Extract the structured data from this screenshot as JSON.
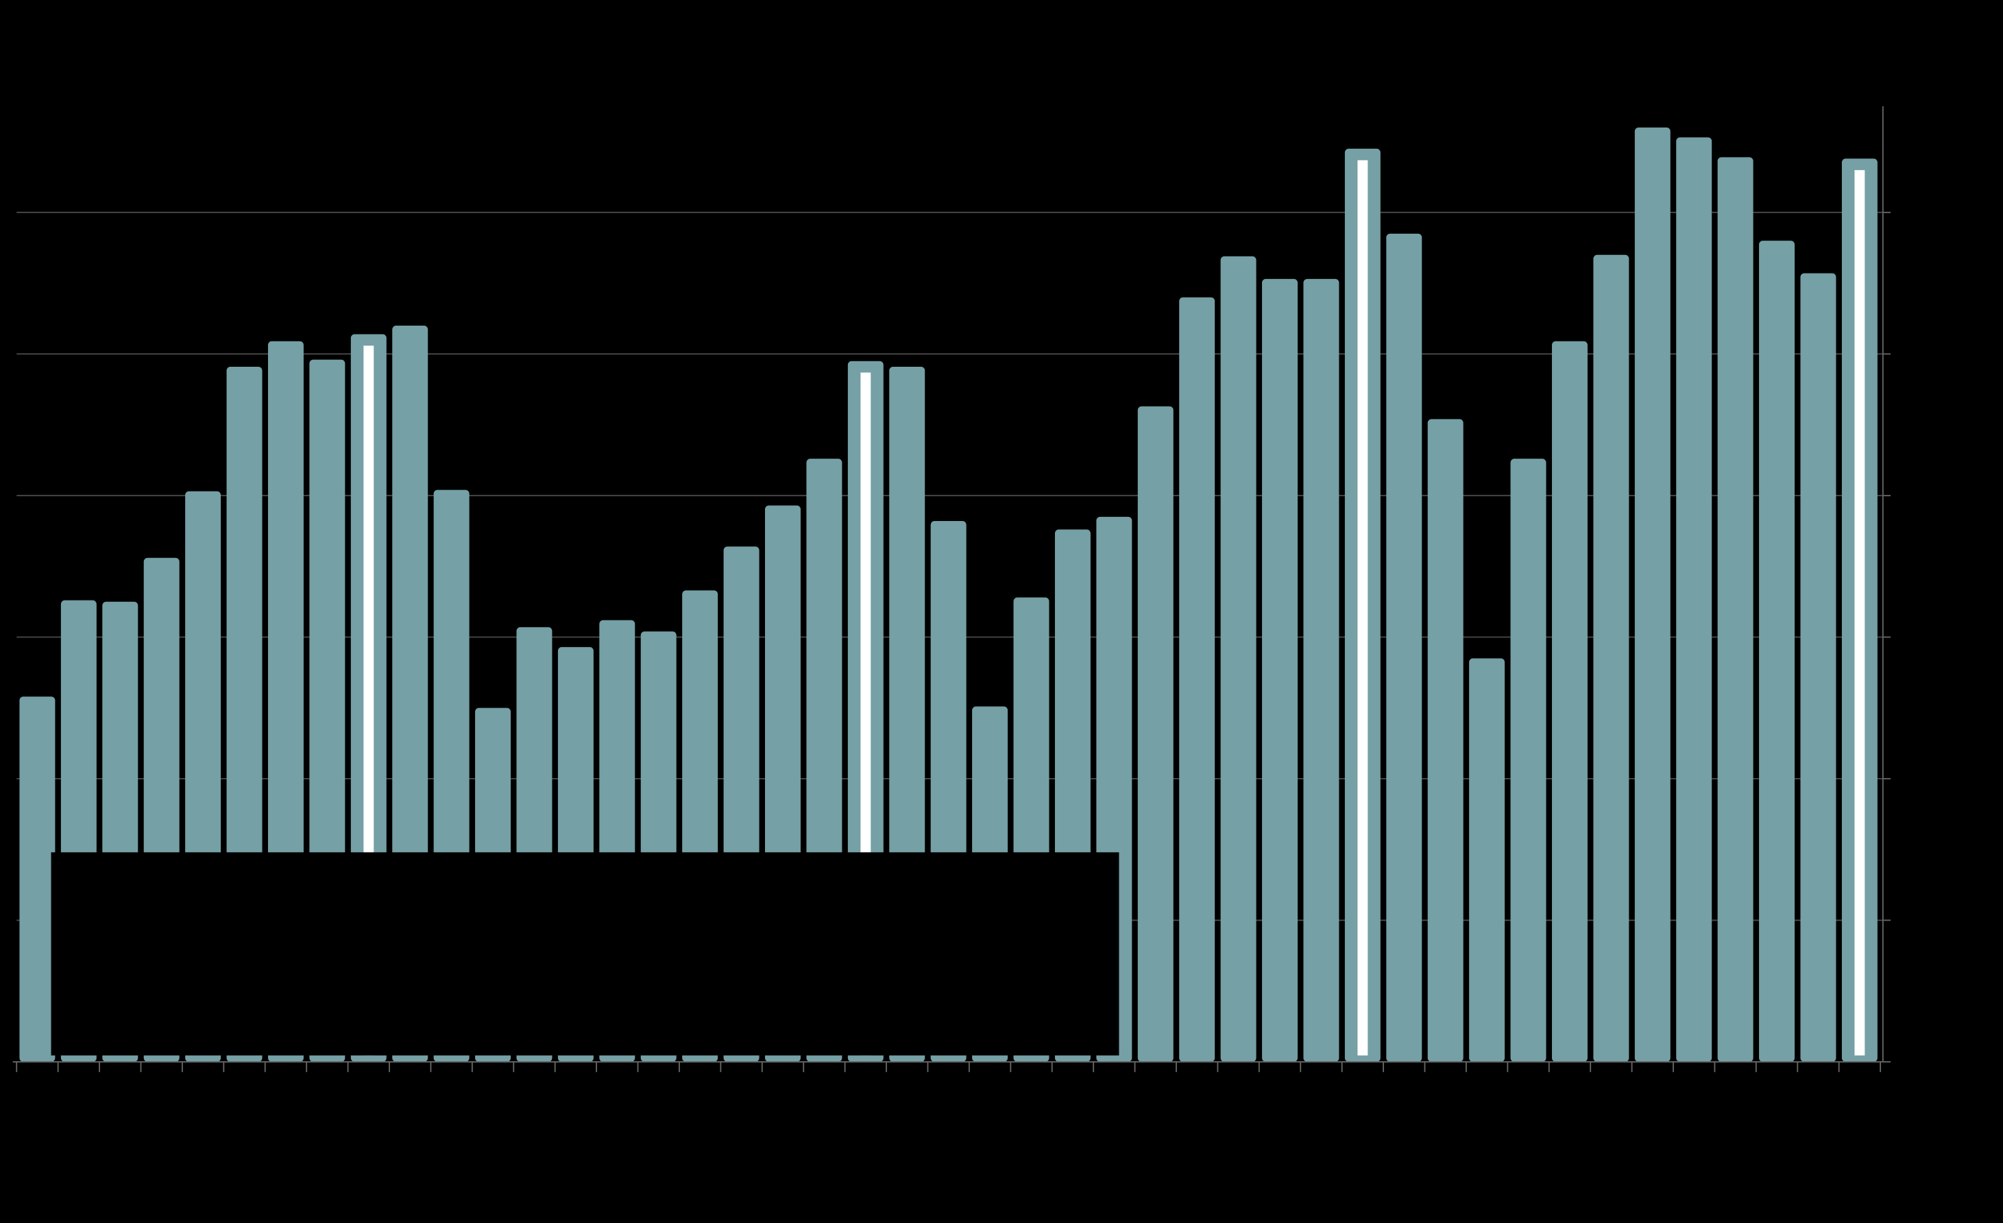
{
  "chart_data": {
    "type": "bar",
    "categories": [
      null,
      null,
      null,
      null,
      null,
      null,
      null,
      null,
      null,
      null,
      null,
      null,
      null,
      null,
      null,
      null,
      null,
      null,
      null,
      null,
      null,
      null,
      null,
      null,
      null,
      null,
      null,
      null,
      null,
      null,
      null,
      null,
      null,
      null,
      null,
      null,
      null,
      null,
      null,
      null,
      null,
      null,
      null,
      null,
      null
    ],
    "values": [
      2.58,
      3.26,
      3.25,
      3.56,
      4.03,
      4.91,
      5.09,
      4.96,
      5.14,
      5.2,
      4.04,
      2.5,
      3.07,
      2.93,
      3.12,
      3.04,
      3.33,
      3.64,
      3.93,
      4.26,
      4.95,
      4.91,
      3.82,
      2.51,
      3.28,
      3.76,
      3.85,
      4.63,
      5.4,
      5.69,
      5.53,
      5.53,
      6.45,
      5.85,
      4.54,
      2.85,
      4.26,
      5.09,
      5.7,
      6.6,
      6.53,
      6.39,
      5.8,
      5.57,
      6.38
    ],
    "highlight": [
      8,
      20,
      32,
      44
    ],
    "color": "#75a0a5",
    "ylim": [
      0,
      6.75
    ],
    "yticks": [
      0,
      1,
      2,
      3,
      4,
      5,
      6
    ],
    "grid": true,
    "y_axis_side": "right"
  }
}
